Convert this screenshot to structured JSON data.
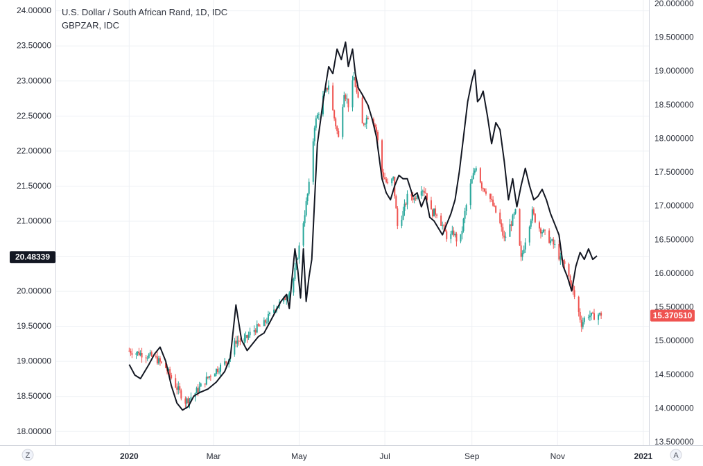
{
  "chart_data": {
    "type": "candlestick",
    "title": "U.S. Dollar / South African Rand, 1D, IDC",
    "subtitle": "GBPZAR, IDC",
    "left_axis": {
      "ticks": [
        "24.00000",
        "23.50000",
        "23.00000",
        "22.50000",
        "22.00000",
        "21.50000",
        "21.00000",
        "20.50000",
        "20.00000",
        "19.50000",
        "19.00000",
        "18.50000",
        "18.00000"
      ],
      "range": [
        17.8,
        24.15
      ],
      "last_value_tag": "20.48339",
      "last_value": 20.48339
    },
    "right_axis": {
      "ticks": [
        "20.000000",
        "19.500000",
        "19.000000",
        "18.500000",
        "18.000000",
        "17.500000",
        "17.000000",
        "16.500000",
        "16.000000",
        "15.500000",
        "15.000000",
        "14.500000",
        "14.000000",
        "13.500000"
      ],
      "range": [
        13.45,
        20.05
      ],
      "last_value_tag": "15.370510",
      "last_value": 15.37051
    },
    "x_axis": {
      "labels": [
        "2020",
        "Mar",
        "May",
        "Jul",
        "Sep",
        "Nov",
        "2021"
      ]
    },
    "grid": true,
    "series": [
      {
        "name": "U.S. Dollar / South African Rand",
        "axis": "right",
        "style": "candles",
        "up_color": "#26a69a",
        "down_color": "#ef5350",
        "close_points": [
          [
            0,
            14.85
          ],
          [
            10,
            14.8
          ],
          [
            18,
            14.75
          ],
          [
            26,
            14.6
          ],
          [
            34,
            14.3
          ],
          [
            40,
            14.1
          ],
          [
            46,
            14.2
          ],
          [
            52,
            14.35
          ],
          [
            58,
            14.5
          ],
          [
            64,
            14.6
          ],
          [
            70,
            14.7
          ],
          [
            76,
            15.0
          ],
          [
            82,
            15.0
          ],
          [
            88,
            15.15
          ],
          [
            96,
            15.25
          ],
          [
            104,
            15.5
          ],
          [
            110,
            15.6
          ],
          [
            116,
            15.8
          ],
          [
            122,
            16.5
          ],
          [
            128,
            17.3
          ],
          [
            132,
            18.2
          ],
          [
            138,
            18.6
          ],
          [
            142,
            18.8
          ],
          [
            145,
            18.4
          ],
          [
            149,
            18.0
          ],
          [
            153,
            18.7
          ],
          [
            156,
            18.5
          ],
          [
            160,
            18.9
          ],
          [
            166,
            18.2
          ],
          [
            172,
            18.4
          ],
          [
            176,
            18.1
          ],
          [
            180,
            17.5
          ],
          [
            184,
            17.3
          ],
          [
            188,
            17.4
          ],
          [
            191,
            16.7
          ],
          [
            195,
            16.9
          ],
          [
            199,
            17.2
          ],
          [
            203,
            17.1
          ],
          [
            207,
            17.3
          ],
          [
            211,
            17.2
          ],
          [
            215,
            16.9
          ],
          [
            219,
            16.9
          ],
          [
            223,
            16.7
          ],
          [
            227,
            16.5
          ],
          [
            231,
            16.6
          ],
          [
            235,
            16.4
          ],
          [
            239,
            16.9
          ],
          [
            243,
            17.3
          ],
          [
            247,
            17.6
          ],
          [
            251,
            17.3
          ],
          [
            255,
            17.2
          ],
          [
            259,
            17.0
          ],
          [
            263,
            16.8
          ],
          [
            267,
            16.5
          ],
          [
            271,
            16.7
          ],
          [
            275,
            16.9
          ],
          [
            279,
            16.2
          ],
          [
            283,
            16.6
          ],
          [
            287,
            16.9
          ],
          [
            291,
            16.7
          ],
          [
            295,
            16.6
          ],
          [
            299,
            16.5
          ],
          [
            303,
            16.4
          ],
          [
            307,
            16.2
          ],
          [
            311,
            16.1
          ],
          [
            315,
            15.8
          ],
          [
            319,
            15.5
          ],
          [
            322,
            15.25
          ],
          [
            326,
            15.4
          ],
          [
            330,
            15.35
          ],
          [
            333,
            15.4
          ],
          [
            336,
            15.37
          ]
        ]
      },
      {
        "name": "GBPZAR",
        "axis": "left",
        "style": "line",
        "color": "#131722",
        "points": [
          [
            0,
            18.95
          ],
          [
            4,
            18.8
          ],
          [
            8,
            18.75
          ],
          [
            14,
            18.95
          ],
          [
            18,
            19.1
          ],
          [
            22,
            19.2
          ],
          [
            26,
            19.0
          ],
          [
            30,
            18.65
          ],
          [
            34,
            18.4
          ],
          [
            38,
            18.3
          ],
          [
            42,
            18.35
          ],
          [
            46,
            18.5
          ],
          [
            50,
            18.55
          ],
          [
            56,
            18.6
          ],
          [
            62,
            18.7
          ],
          [
            68,
            18.85
          ],
          [
            72,
            19.05
          ],
          [
            76,
            19.8
          ],
          [
            80,
            19.3
          ],
          [
            84,
            19.15
          ],
          [
            88,
            19.25
          ],
          [
            92,
            19.35
          ],
          [
            96,
            19.4
          ],
          [
            100,
            19.55
          ],
          [
            104,
            19.7
          ],
          [
            108,
            19.85
          ],
          [
            112,
            19.95
          ],
          [
            114,
            19.75
          ],
          [
            116,
            20.2
          ],
          [
            118,
            20.6
          ],
          [
            120,
            20.3
          ],
          [
            122,
            19.9
          ],
          [
            124,
            20.6
          ],
          [
            126,
            19.85
          ],
          [
            128,
            20.2
          ],
          [
            130,
            20.45
          ],
          [
            132,
            21.3
          ],
          [
            134,
            22.1
          ],
          [
            136,
            22.4
          ],
          [
            138,
            22.7
          ],
          [
            140,
            22.95
          ],
          [
            142,
            23.2
          ],
          [
            145,
            23.1
          ],
          [
            148,
            23.45
          ],
          [
            151,
            23.3
          ],
          [
            154,
            23.55
          ],
          [
            156,
            23.2
          ],
          [
            159,
            23.45
          ],
          [
            161,
            23.1
          ],
          [
            163,
            22.9
          ],
          [
            166,
            22.8
          ],
          [
            170,
            22.65
          ],
          [
            173,
            22.45
          ],
          [
            176,
            22.2
          ],
          [
            180,
            21.6
          ],
          [
            183,
            21.4
          ],
          [
            186,
            21.3
          ],
          [
            189,
            21.5
          ],
          [
            192,
            21.65
          ],
          [
            195,
            21.6
          ],
          [
            198,
            21.6
          ],
          [
            202,
            21.35
          ],
          [
            205,
            21.4
          ],
          [
            208,
            21.2
          ],
          [
            211,
            21.35
          ],
          [
            214,
            21.05
          ],
          [
            217,
            21.0
          ],
          [
            220,
            20.9
          ],
          [
            223,
            20.8
          ],
          [
            226,
            20.95
          ],
          [
            229,
            21.1
          ],
          [
            232,
            21.3
          ],
          [
            235,
            21.7
          ],
          [
            238,
            22.2
          ],
          [
            241,
            22.7
          ],
          [
            244,
            23.0
          ],
          [
            246,
            23.15
          ],
          [
            248,
            22.7
          ],
          [
            250,
            22.75
          ],
          [
            252,
            22.85
          ],
          [
            255,
            22.5
          ],
          [
            258,
            22.1
          ],
          [
            261,
            22.4
          ],
          [
            264,
            22.3
          ],
          [
            267,
            21.85
          ],
          [
            270,
            21.3
          ],
          [
            273,
            21.6
          ],
          [
            276,
            21.2
          ],
          [
            279,
            21.5
          ],
          [
            282,
            21.75
          ],
          [
            285,
            21.5
          ],
          [
            288,
            21.3
          ],
          [
            291,
            21.35
          ],
          [
            294,
            21.45
          ],
          [
            297,
            21.3
          ],
          [
            300,
            21.1
          ],
          [
            303,
            20.95
          ],
          [
            306,
            20.8
          ],
          [
            309,
            20.35
          ],
          [
            312,
            20.2
          ],
          [
            315,
            20.0
          ],
          [
            318,
            20.35
          ],
          [
            321,
            20.55
          ],
          [
            324,
            20.45
          ],
          [
            327,
            20.6
          ],
          [
            330,
            20.45
          ],
          [
            333,
            20.5
          ]
        ]
      }
    ]
  },
  "corner_buttons": {
    "left": "Z",
    "right": "A"
  }
}
